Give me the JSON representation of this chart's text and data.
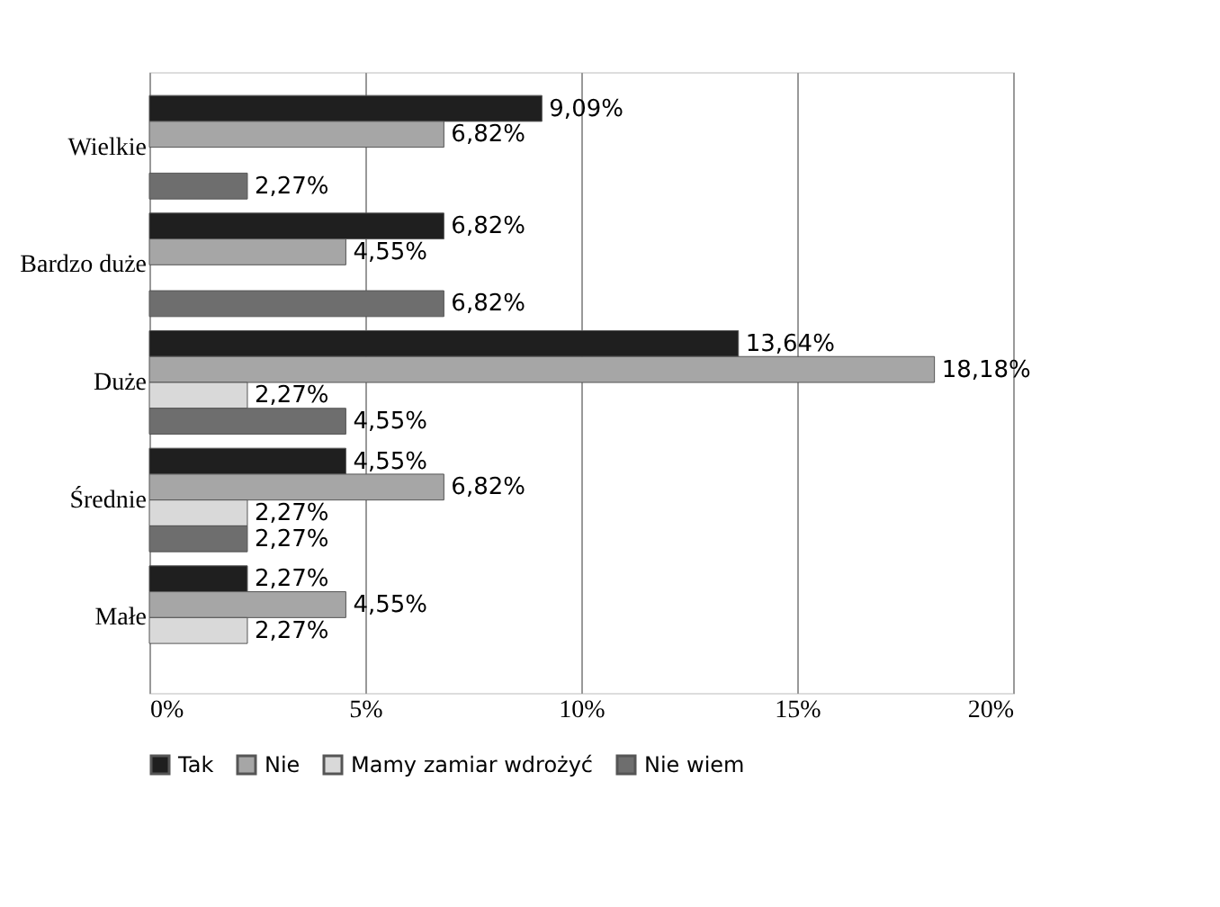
{
  "chart_data": {
    "type": "bar",
    "orientation": "horizontal",
    "categories": [
      "Wielkie",
      "Bardzo duże",
      "Duże",
      "Średnie",
      "Małe"
    ],
    "series": [
      {
        "name": "Tak",
        "color": "#1f1f1f",
        "values": [
          9.09,
          6.82,
          13.64,
          4.55,
          2.27
        ],
        "value_labels": [
          "9,09%",
          "6,82%",
          "13,64%",
          "4,55%",
          "2,27%"
        ]
      },
      {
        "name": "Nie",
        "color": "#a6a6a6",
        "values": [
          6.82,
          4.55,
          18.18,
          6.82,
          4.55
        ],
        "value_labels": [
          "6,82%",
          "4,55%",
          "18,18%",
          "6,82%",
          "4,55%"
        ]
      },
      {
        "name": "Mamy zamiar wdrożyć",
        "color": "#d9d9d9",
        "values": [
          null,
          null,
          2.27,
          2.27,
          2.27
        ],
        "value_labels": [
          null,
          null,
          "2,27%",
          "2,27%",
          "2,27%"
        ]
      },
      {
        "name": "Nie wiem",
        "color": "#6e6e6e",
        "values": [
          2.27,
          6.82,
          4.55,
          2.27,
          null
        ],
        "value_labels": [
          "2,27%",
          "6,82%",
          "4,55%",
          "2,27%",
          null
        ]
      }
    ],
    "xlim": [
      0,
      20
    ],
    "xticks": [
      {
        "value": 0,
        "label": "0%"
      },
      {
        "value": 5,
        "label": "5%"
      },
      {
        "value": 10,
        "label": "10%"
      },
      {
        "value": 15,
        "label": "15%"
      },
      {
        "value": 20,
        "label": "20%"
      }
    ],
    "grid": "x",
    "legend": "bottom"
  }
}
